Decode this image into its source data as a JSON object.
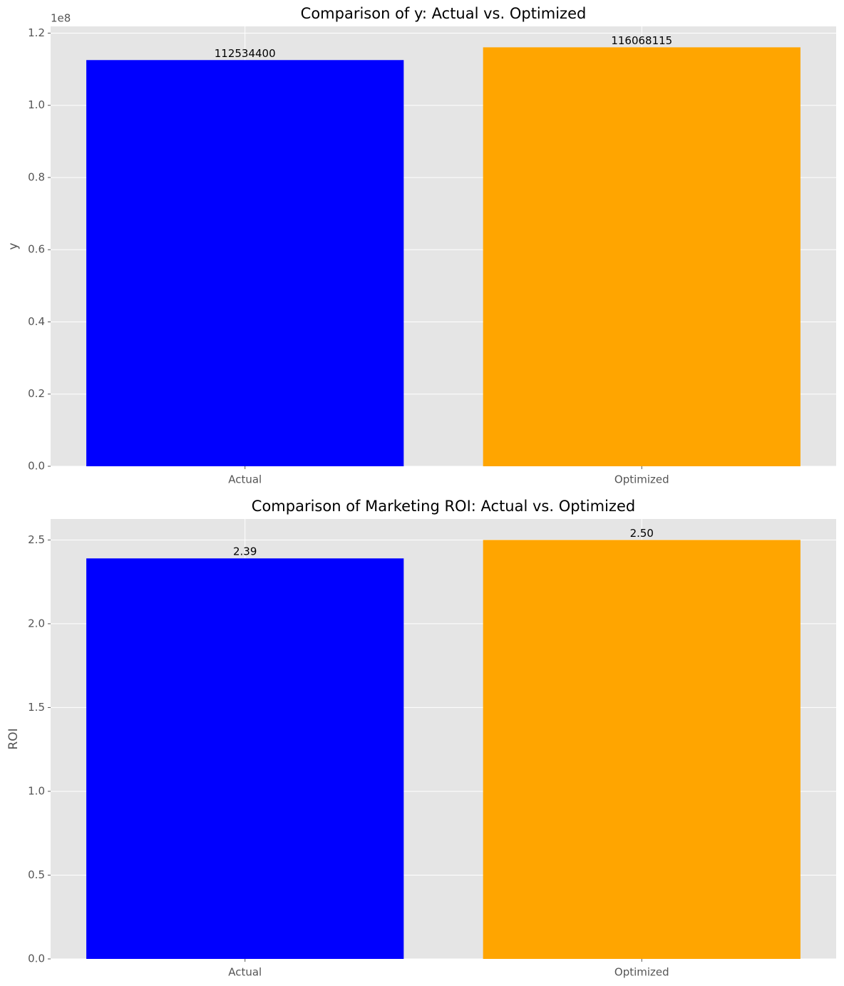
{
  "chart_data": [
    {
      "type": "bar",
      "title": "Comparison of y: Actual vs. Optimized",
      "y_label": "y",
      "offset_text": "1e8",
      "categories": [
        "Actual",
        "Optimized"
      ],
      "values": [
        112534400,
        116068115
      ],
      "colors": [
        "#0000ff",
        "#ffa500"
      ],
      "ylim": [
        0,
        121871521
      ],
      "yticks": [
        {
          "value": 0,
          "label": "0.0"
        },
        {
          "value": 20000000,
          "label": "0.2"
        },
        {
          "value": 40000000,
          "label": "0.4"
        },
        {
          "value": 60000000,
          "label": "0.6"
        },
        {
          "value": 80000000,
          "label": "0.8"
        },
        {
          "value": 100000000,
          "label": "1.0"
        },
        {
          "value": 120000000,
          "label": "1.2"
        }
      ],
      "grid": true
    },
    {
      "type": "bar",
      "title": "Comparison of Marketing ROI: Actual vs. Optimized",
      "y_label": "ROI",
      "categories": [
        "Actual",
        "Optimized"
      ],
      "values": [
        2.39,
        2.5
      ],
      "value_labels": [
        "2.39",
        "2.50"
      ],
      "colors": [
        "#0000ff",
        "#ffa500"
      ],
      "ylim": [
        0,
        2.625
      ],
      "yticks": [
        {
          "value": 0,
          "label": "0.0"
        },
        0.5,
        {
          "value": 1,
          "label": "1.0"
        },
        1.5,
        {
          "value": 2,
          "label": "2.0"
        },
        2.5
      ],
      "grid": true
    }
  ]
}
